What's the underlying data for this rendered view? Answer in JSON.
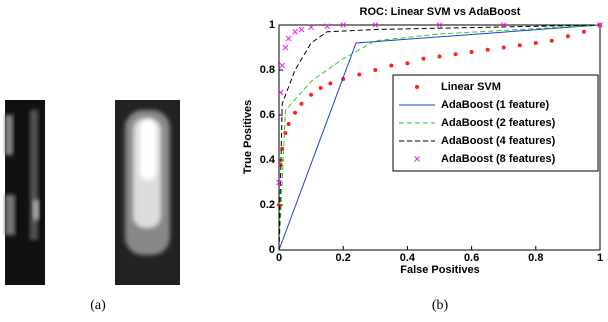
{
  "panels": {
    "a": "(a)",
    "b": "(b)"
  },
  "chart_data": {
    "type": "line",
    "title": "ROC: Linear SVM vs AdaBoost",
    "xlabel": "False Positives",
    "ylabel": "True Positives",
    "xlim": [
      0,
      1
    ],
    "ylim": [
      0,
      1
    ],
    "xticks": [
      0,
      0.2,
      0.4,
      0.6,
      0.8,
      1
    ],
    "yticks": [
      0,
      0.2,
      0.4,
      0.6,
      0.8,
      1
    ],
    "legend": "right",
    "series": [
      {
        "name": "Linear SVM",
        "color": "#ff2020",
        "line_style": "none",
        "marker": "dot",
        "x": [
          0,
          0.005,
          0.01,
          0.02,
          0.03,
          0.05,
          0.07,
          0.1,
          0.13,
          0.16,
          0.2,
          0.25,
          0.3,
          0.35,
          0.4,
          0.45,
          0.5,
          0.55,
          0.6,
          0.65,
          0.7,
          0.75,
          0.8,
          0.85,
          0.9,
          0.95,
          1
        ],
        "values": [
          0.2,
          0.38,
          0.45,
          0.52,
          0.56,
          0.61,
          0.65,
          0.69,
          0.72,
          0.74,
          0.76,
          0.78,
          0.8,
          0.82,
          0.83,
          0.85,
          0.86,
          0.87,
          0.88,
          0.89,
          0.9,
          0.91,
          0.92,
          0.93,
          0.95,
          0.97,
          1
        ]
      },
      {
        "name": "AdaBoost (1 feature)",
        "color": "#1f3fd0",
        "line_style": "solid",
        "marker": "none",
        "x": [
          0,
          0.24,
          1
        ],
        "values": [
          0,
          0.92,
          1
        ]
      },
      {
        "name": "AdaBoost (2 features)",
        "color": "#22cc22",
        "line_style": "dashed",
        "marker": "none",
        "x": [
          0,
          0.02,
          0.1,
          0.2,
          0.3,
          0.5,
          1
        ],
        "values": [
          0,
          0.62,
          0.75,
          0.85,
          0.93,
          0.96,
          1
        ]
      },
      {
        "name": "AdaBoost (4 features)",
        "color": "#000000",
        "line_style": "dashed",
        "marker": "none",
        "x": [
          0,
          0.01,
          0.05,
          0.1,
          0.15,
          0.3,
          1
        ],
        "values": [
          0,
          0.65,
          0.8,
          0.92,
          0.97,
          0.98,
          1
        ]
      },
      {
        "name": "AdaBoost (8 features)",
        "color": "#ee22ee",
        "line_style": "none",
        "marker": "x",
        "x": [
          0,
          0.005,
          0.01,
          0.02,
          0.03,
          0.05,
          0.07,
          0.1,
          0.15,
          0.2,
          0.3,
          0.5,
          0.7,
          1
        ],
        "values": [
          0.3,
          0.7,
          0.82,
          0.9,
          0.94,
          0.97,
          0.98,
          0.99,
          0.995,
          1,
          1,
          1,
          1,
          1
        ]
      }
    ]
  }
}
